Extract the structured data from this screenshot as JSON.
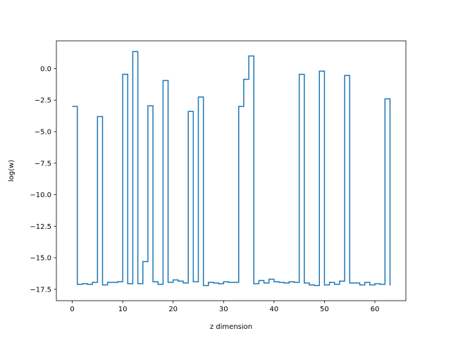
{
  "chart_data": {
    "type": "line",
    "drawstyle": "steps-post",
    "title": "",
    "xlabel": "z dimension",
    "ylabel": "log(w)",
    "xlim": [
      -3.15,
      66.15
    ],
    "ylim": [
      -18.4,
      2.2
    ],
    "xticks": [
      0,
      10,
      20,
      30,
      40,
      50,
      60
    ],
    "xtick_labels": [
      "0",
      "10",
      "20",
      "30",
      "40",
      "50",
      "60"
    ],
    "yticks": [
      0.0,
      -2.5,
      -5.0,
      -7.5,
      -10.0,
      -12.5,
      -15.0,
      -17.5
    ],
    "ytick_labels": [
      "0.0",
      "−2.5",
      "−5.0",
      "−7.5",
      "−10.0",
      "−12.5",
      "−15.0",
      "−17.5"
    ],
    "grid": false,
    "legend": "none",
    "series": [
      {
        "color": "#1f77b4",
        "x": [
          0,
          1,
          2,
          3,
          4,
          5,
          6,
          7,
          8,
          9,
          10,
          11,
          12,
          13,
          14,
          15,
          16,
          17,
          18,
          19,
          20,
          21,
          22,
          23,
          24,
          25,
          26,
          27,
          28,
          29,
          30,
          31,
          32,
          33,
          34,
          35,
          36,
          37,
          38,
          39,
          40,
          41,
          42,
          43,
          44,
          45,
          46,
          47,
          48,
          49,
          50,
          51,
          52,
          53,
          54,
          55,
          56,
          57,
          58,
          59,
          60,
          61,
          62,
          63
        ],
        "values": [
          -3.0,
          -17.1,
          -17.05,
          -17.1,
          -16.95,
          -3.8,
          -17.15,
          -16.95,
          -16.95,
          -16.9,
          -0.45,
          -17.05,
          1.35,
          -17.05,
          -15.3,
          -2.95,
          -16.9,
          -17.1,
          -0.95,
          -16.95,
          -16.75,
          -16.85,
          -17.0,
          -3.4,
          -16.9,
          -2.25,
          -17.2,
          -16.95,
          -17.0,
          -17.05,
          -16.9,
          -16.95,
          -16.95,
          -3.0,
          -0.85,
          1.0,
          -17.05,
          -16.8,
          -17.0,
          -16.7,
          -16.9,
          -16.95,
          -17.0,
          -16.9,
          -16.95,
          -0.45,
          -17.0,
          -17.15,
          -17.2,
          -0.2,
          -17.15,
          -16.95,
          -17.1,
          -16.85,
          -0.55,
          -17.0,
          -17.0,
          -17.15,
          -16.95,
          -17.15,
          -17.05,
          -17.1,
          -2.4,
          -17.2
        ]
      }
    ]
  }
}
